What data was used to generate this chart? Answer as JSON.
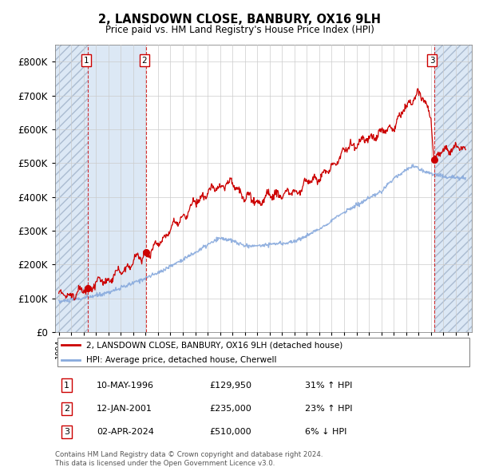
{
  "title": "2, LANSDOWN CLOSE, BANBURY, OX16 9LH",
  "subtitle": "Price paid vs. HM Land Registry's House Price Index (HPI)",
  "ylim": [
    0,
    850000
  ],
  "yticks": [
    0,
    100000,
    200000,
    300000,
    400000,
    500000,
    600000,
    700000,
    800000
  ],
  "ytick_labels": [
    "£0",
    "£100K",
    "£200K",
    "£300K",
    "£400K",
    "£500K",
    "£600K",
    "£700K",
    "£800K"
  ],
  "xlim_start": 1993.7,
  "xlim_end": 2027.3,
  "sale_dates": [
    1996.36,
    2001.04,
    2024.25
  ],
  "sale_prices": [
    129950,
    235000,
    510000
  ],
  "sale_labels": [
    "1",
    "2",
    "3"
  ],
  "sale_color": "#cc0000",
  "hpi_line_color": "#88aadd",
  "price_line_color": "#cc0000",
  "legend_entry1": "2, LANSDOWN CLOSE, BANBURY, OX16 9LH (detached house)",
  "legend_entry2": "HPI: Average price, detached house, Cherwell",
  "table_data": [
    [
      "1",
      "10-MAY-1996",
      "£129,950",
      "31% ↑ HPI"
    ],
    [
      "2",
      "12-JAN-2001",
      "£235,000",
      "23% ↑ HPI"
    ],
    [
      "3",
      "02-APR-2024",
      "£510,000",
      "6% ↓ HPI"
    ]
  ],
  "footer": "Contains HM Land Registry data © Crown copyright and database right 2024.\nThis data is licensed under the Open Government Licence v3.0.",
  "dashed_line_color": "#cc0000",
  "box_color": "#cc0000",
  "hatch_fill_color": "#dce8f5",
  "between_sales_color": "#dce8f5",
  "white_bg": "#ffffff"
}
